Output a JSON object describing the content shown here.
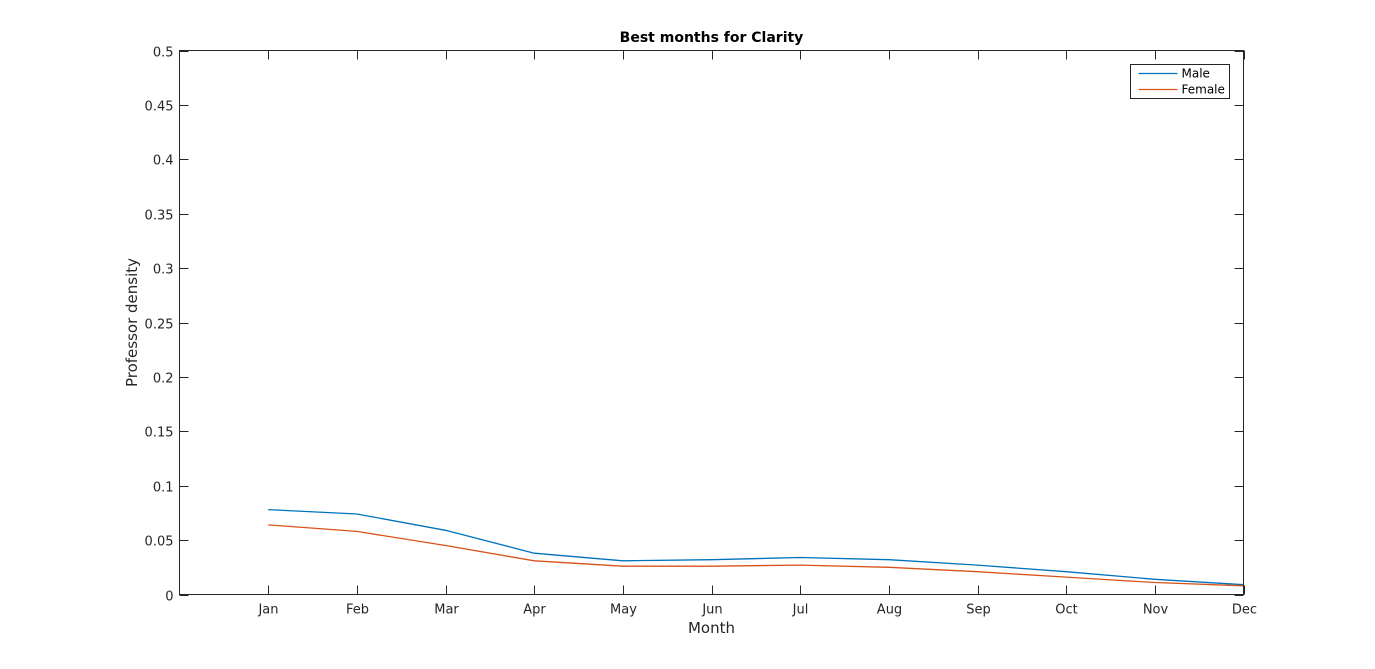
{
  "chart_data": {
    "type": "line",
    "title": "Best months for Clarity",
    "xlabel": "Month",
    "ylabel": "Professor density",
    "categories": [
      "Jan",
      "Feb",
      "Mar",
      "Apr",
      "May",
      "Jun",
      "Jul",
      "Aug",
      "Sep",
      "Oct",
      "Nov",
      "Dec"
    ],
    "x_start_category_offset": 1,
    "ylim": [
      0,
      0.5
    ],
    "yticks": [
      "0",
      "0.05",
      "0.1",
      "0.15",
      "0.2",
      "0.25",
      "0.3",
      "0.35",
      "0.4",
      "0.45",
      "0.5"
    ],
    "grid": false,
    "legend_position": "top-right",
    "series": [
      {
        "name": "Male",
        "color": "#0072bd",
        "values": [
          0.078,
          0.074,
          0.059,
          0.038,
          0.031,
          0.032,
          0.034,
          0.032,
          0.027,
          0.021,
          0.014,
          0.009
        ]
      },
      {
        "name": "Female",
        "color": "#d95319",
        "values": [
          0.064,
          0.058,
          0.045,
          0.031,
          0.026,
          0.026,
          0.027,
          0.025,
          0.021,
          0.016,
          0.011,
          0.008
        ]
      }
    ]
  }
}
